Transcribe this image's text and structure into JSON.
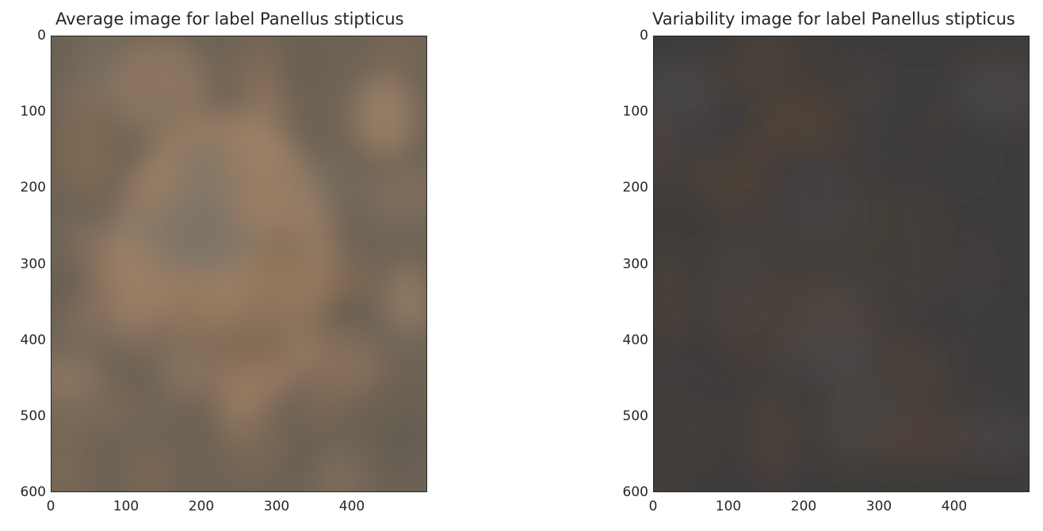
{
  "chart_data": [
    {
      "type": "heatmap",
      "title": "Average image for label Panellus stipticus",
      "xticks": [
        "0",
        "100",
        "200",
        "300",
        "400"
      ],
      "yticks": [
        "0",
        "100",
        "200",
        "300",
        "400",
        "500",
        "600"
      ],
      "xlim": [
        0,
        500
      ],
      "ylim": [
        600,
        0
      ],
      "grid": false,
      "base_color": "#6e6355",
      "accent_colors": [
        "#a7866a",
        "#8c6e54",
        "#5f5a50",
        "#7a7468"
      ]
    },
    {
      "type": "heatmap",
      "title": "Variability image for label Panellus stipticus",
      "xticks": [
        "0",
        "100",
        "200",
        "300",
        "400"
      ],
      "yticks": [
        "0",
        "100",
        "200",
        "300",
        "400",
        "500",
        "600"
      ],
      "xlim": [
        0,
        500
      ],
      "ylim": [
        600,
        0
      ],
      "grid": false,
      "base_color": "#3f3d3b",
      "accent_colors": [
        "#4a4039",
        "#554538",
        "#3a3a40",
        "#4d4a4c"
      ]
    }
  ]
}
